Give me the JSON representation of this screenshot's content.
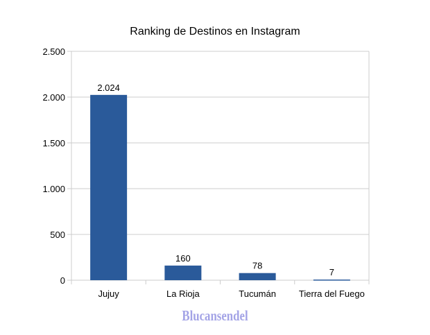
{
  "chart_data": {
    "type": "bar",
    "title": "Ranking de Destinos en Instagram",
    "categories": [
      "Jujuy",
      "La Rioja",
      "Tucumán",
      "Tierra del Fuego"
    ],
    "values": [
      2024,
      160,
      78,
      7
    ],
    "data_labels": [
      "2.024",
      "160",
      "78",
      "7"
    ],
    "ylim": [
      0,
      2500
    ],
    "yticks": [
      0,
      500,
      1000,
      1500,
      2000,
      2500
    ],
    "ytick_labels": [
      "0",
      "500",
      "1.000",
      "1.500",
      "2.000",
      "2.500"
    ],
    "grid": true,
    "legend": "none",
    "bar_color": "#2a5a9a",
    "grid_color": "#cccccc"
  },
  "watermark": "Blucansendel"
}
